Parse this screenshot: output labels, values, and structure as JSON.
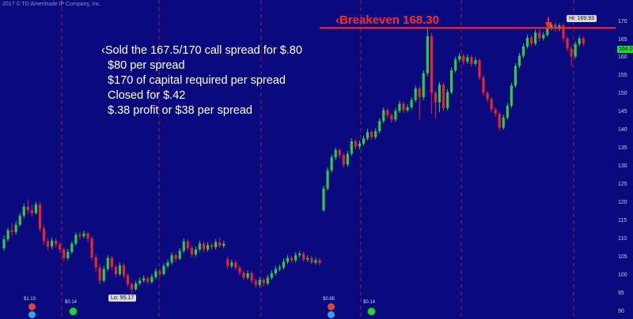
{
  "copyright": "2017 © TD Ameritrade IP Company, Inc.",
  "note": {
    "line1": "‹Sold the 167.5/170 call spread for $.80",
    "line2": "$80 per spread",
    "line3": "$170 of capital required per spread",
    "line4": "Closed for $.42",
    "line5": "$.38 profit or $38 per spread"
  },
  "breakeven_label": "‹Breakeven 168.30",
  "hi_label": "Hi: 169.93",
  "lo_label": "Lo: 95.17",
  "last_price_label": "164.0",
  "dividends": [
    "$1.13",
    "$0.14",
    "$0.85",
    "$0.14"
  ],
  "colors": {
    "background": "#0a0a7e",
    "up": "#2ecc40",
    "down": "#e8242e",
    "breakeven": "#ff2a2a",
    "separator": "#cc2a2a"
  },
  "chart_data": {
    "type": "candlestick",
    "title": "",
    "xlabel": "",
    "ylabel": "",
    "ylim": [
      88,
      176
    ],
    "yticks": [
      90,
      95,
      100,
      105,
      110,
      115,
      120,
      125,
      130,
      135,
      140,
      145,
      150,
      155,
      160,
      165,
      170
    ],
    "grid": false,
    "breakeven": 168.3,
    "high": 169.93,
    "low": 95.17,
    "last": 164.0,
    "candles": [
      {
        "o": 107.5,
        "c": 110.0,
        "h": 111.0,
        "l": 106.8
      },
      {
        "o": 110.0,
        "c": 112.5,
        "h": 113.2,
        "l": 109.3
      },
      {
        "o": 112.5,
        "c": 112.0,
        "h": 114.5,
        "l": 111.0
      },
      {
        "o": 112.0,
        "c": 114.0,
        "h": 115.0,
        "l": 111.2
      },
      {
        "o": 114.0,
        "c": 116.5,
        "h": 117.2,
        "l": 113.5
      },
      {
        "o": 116.5,
        "c": 119.0,
        "h": 119.8,
        "l": 115.8
      },
      {
        "o": 119.0,
        "c": 118.0,
        "h": 121.0,
        "l": 117.0
      },
      {
        "o": 118.0,
        "c": 117.2,
        "h": 119.5,
        "l": 116.2
      },
      {
        "o": 117.2,
        "c": 119.6,
        "h": 120.4,
        "l": 116.8
      },
      {
        "o": 119.6,
        "c": 113.0,
        "h": 120.2,
        "l": 112.2
      },
      {
        "o": 113.0,
        "c": 109.5,
        "h": 113.8,
        "l": 108.5
      },
      {
        "o": 109.5,
        "c": 108.0,
        "h": 110.2,
        "l": 107.0
      },
      {
        "o": 108.0,
        "c": 109.6,
        "h": 110.5,
        "l": 107.3
      },
      {
        "o": 109.6,
        "c": 108.6,
        "h": 110.3,
        "l": 107.8
      },
      {
        "o": 108.6,
        "c": 107.2,
        "h": 109.2,
        "l": 106.2
      },
      {
        "o": 107.2,
        "c": 104.8,
        "h": 107.8,
        "l": 104.0
      },
      {
        "o": 104.8,
        "c": 106.5,
        "h": 107.3,
        "l": 104.2
      },
      {
        "o": 106.5,
        "c": 108.8,
        "h": 109.5,
        "l": 106.0
      },
      {
        "o": 108.8,
        "c": 111.2,
        "h": 111.8,
        "l": 108.2
      },
      {
        "o": 111.2,
        "c": 110.8,
        "h": 112.2,
        "l": 110.0
      },
      {
        "o": 110.8,
        "c": 111.6,
        "h": 112.4,
        "l": 110.2
      },
      {
        "o": 111.6,
        "c": 110.2,
        "h": 112.0,
        "l": 109.2
      },
      {
        "o": 110.2,
        "c": 105.0,
        "h": 110.8,
        "l": 104.2
      },
      {
        "o": 105.0,
        "c": 102.2,
        "h": 105.8,
        "l": 101.0
      },
      {
        "o": 102.2,
        "c": 98.6,
        "h": 103.0,
        "l": 97.6
      },
      {
        "o": 98.6,
        "c": 101.8,
        "h": 102.6,
        "l": 98.0
      },
      {
        "o": 101.8,
        "c": 104.8,
        "h": 105.6,
        "l": 101.2
      },
      {
        "o": 104.8,
        "c": 102.4,
        "h": 105.4,
        "l": 101.6
      },
      {
        "o": 102.4,
        "c": 100.4,
        "h": 103.0,
        "l": 99.6
      },
      {
        "o": 100.4,
        "c": 102.8,
        "h": 103.6,
        "l": 99.8
      },
      {
        "o": 102.8,
        "c": 100.0,
        "h": 103.4,
        "l": 99.2
      },
      {
        "o": 100.0,
        "c": 97.6,
        "h": 100.6,
        "l": 96.8
      },
      {
        "o": 97.6,
        "c": 96.2,
        "h": 98.2,
        "l": 95.17
      },
      {
        "o": 96.2,
        "c": 97.8,
        "h": 98.6,
        "l": 95.8
      },
      {
        "o": 97.8,
        "c": 98.6,
        "h": 99.4,
        "l": 97.2
      },
      {
        "o": 98.6,
        "c": 99.2,
        "h": 100.0,
        "l": 98.0
      },
      {
        "o": 99.2,
        "c": 98.2,
        "h": 99.8,
        "l": 97.6
      },
      {
        "o": 98.2,
        "c": 99.6,
        "h": 100.4,
        "l": 97.8
      },
      {
        "o": 99.6,
        "c": 101.2,
        "h": 102.0,
        "l": 99.0
      },
      {
        "o": 101.2,
        "c": 100.4,
        "h": 101.8,
        "l": 99.6
      },
      {
        "o": 100.4,
        "c": 102.6,
        "h": 103.4,
        "l": 100.0
      },
      {
        "o": 102.6,
        "c": 103.6,
        "h": 104.4,
        "l": 102.0
      },
      {
        "o": 103.6,
        "c": 105.6,
        "h": 106.4,
        "l": 103.0
      },
      {
        "o": 105.6,
        "c": 104.6,
        "h": 106.2,
        "l": 103.8
      },
      {
        "o": 104.6,
        "c": 106.8,
        "h": 107.6,
        "l": 104.2
      },
      {
        "o": 106.8,
        "c": 109.4,
        "h": 110.2,
        "l": 106.2
      },
      {
        "o": 109.4,
        "c": 107.6,
        "h": 110.0,
        "l": 106.8
      },
      {
        "o": 107.6,
        "c": 105.8,
        "h": 108.2,
        "l": 105.0
      },
      {
        "o": 105.8,
        "c": 107.2,
        "h": 108.0,
        "l": 105.2
      },
      {
        "o": 107.2,
        "c": 108.8,
        "h": 109.6,
        "l": 106.6
      },
      {
        "o": 108.8,
        "c": 107.2,
        "h": 109.4,
        "l": 106.4
      },
      {
        "o": 107.2,
        "c": 108.4,
        "h": 109.2,
        "l": 106.6
      },
      {
        "o": 108.4,
        "c": 107.8,
        "h": 109.0,
        "l": 107.0
      },
      {
        "o": 107.8,
        "c": 109.2,
        "h": 110.0,
        "l": 107.2
      },
      {
        "o": 109.2,
        "c": 108.2,
        "h": 110.4,
        "l": 107.6
      },
      {
        "o": 108.2,
        "c": 108.8,
        "h": 109.6,
        "l": 107.6
      },
      {
        "o": 104.4,
        "c": 102.6,
        "h": 105.2,
        "l": 101.8
      },
      {
        "o": 102.6,
        "c": 103.6,
        "h": 104.4,
        "l": 102.0
      },
      {
        "o": 103.6,
        "c": 102.2,
        "h": 104.2,
        "l": 101.4
      },
      {
        "o": 102.2,
        "c": 100.8,
        "h": 102.8,
        "l": 100.0
      },
      {
        "o": 100.8,
        "c": 99.4,
        "h": 101.4,
        "l": 98.6
      },
      {
        "o": 99.4,
        "c": 100.6,
        "h": 101.4,
        "l": 98.8
      },
      {
        "o": 100.6,
        "c": 98.6,
        "h": 101.2,
        "l": 97.8
      },
      {
        "o": 98.6,
        "c": 97.4,
        "h": 99.2,
        "l": 96.6
      },
      {
        "o": 97.4,
        "c": 98.8,
        "h": 99.6,
        "l": 96.8
      },
      {
        "o": 98.8,
        "c": 97.8,
        "h": 99.4,
        "l": 97.0
      },
      {
        "o": 97.8,
        "c": 99.4,
        "h": 100.2,
        "l": 97.2
      },
      {
        "o": 99.4,
        "c": 100.6,
        "h": 101.4,
        "l": 98.8
      },
      {
        "o": 100.6,
        "c": 101.8,
        "h": 102.6,
        "l": 100.0
      },
      {
        "o": 101.8,
        "c": 102.2,
        "h": 103.0,
        "l": 101.2
      },
      {
        "o": 102.2,
        "c": 103.8,
        "h": 104.6,
        "l": 101.6
      },
      {
        "o": 103.8,
        "c": 104.8,
        "h": 105.6,
        "l": 103.2
      },
      {
        "o": 104.8,
        "c": 104.2,
        "h": 105.4,
        "l": 103.6
      },
      {
        "o": 104.2,
        "c": 105.6,
        "h": 106.4,
        "l": 103.6
      },
      {
        "o": 105.6,
        "c": 106.0,
        "h": 106.8,
        "l": 105.0
      },
      {
        "o": 106.0,
        "c": 104.4,
        "h": 106.6,
        "l": 103.8
      },
      {
        "o": 104.4,
        "c": 104.8,
        "h": 105.6,
        "l": 103.8
      },
      {
        "o": 104.8,
        "c": 103.6,
        "h": 105.4,
        "l": 103.0
      },
      {
        "o": 103.6,
        "c": 104.2,
        "h": 105.0,
        "l": 103.0
      },
      {
        "o": 104.2,
        "c": 103.4,
        "h": 104.8,
        "l": 102.8
      },
      {
        "o": 118.0,
        "c": 124.0,
        "h": 124.8,
        "l": 117.6
      },
      {
        "o": 124.0,
        "c": 129.0,
        "h": 129.8,
        "l": 123.4
      },
      {
        "o": 129.0,
        "c": 132.6,
        "h": 133.4,
        "l": 128.4
      },
      {
        "o": 132.6,
        "c": 134.6,
        "h": 135.4,
        "l": 131.8
      },
      {
        "o": 134.6,
        "c": 133.2,
        "h": 135.2,
        "l": 132.4
      },
      {
        "o": 133.2,
        "c": 130.6,
        "h": 133.8,
        "l": 129.8
      },
      {
        "o": 130.6,
        "c": 133.6,
        "h": 134.4,
        "l": 130.0
      },
      {
        "o": 133.6,
        "c": 137.0,
        "h": 137.8,
        "l": 133.0
      },
      {
        "o": 137.0,
        "c": 135.6,
        "h": 137.6,
        "l": 134.8
      },
      {
        "o": 135.6,
        "c": 136.4,
        "h": 137.2,
        "l": 134.8
      },
      {
        "o": 136.4,
        "c": 137.8,
        "h": 138.6,
        "l": 135.8
      },
      {
        "o": 137.8,
        "c": 139.6,
        "h": 140.4,
        "l": 137.2
      },
      {
        "o": 139.6,
        "c": 138.2,
        "h": 140.2,
        "l": 137.4
      },
      {
        "o": 138.2,
        "c": 139.8,
        "h": 140.6,
        "l": 137.6
      },
      {
        "o": 139.8,
        "c": 142.6,
        "h": 143.4,
        "l": 139.2
      },
      {
        "o": 142.6,
        "c": 145.6,
        "h": 146.4,
        "l": 142.0
      },
      {
        "o": 145.6,
        "c": 144.2,
        "h": 146.2,
        "l": 143.4
      },
      {
        "o": 144.2,
        "c": 143.0,
        "h": 144.8,
        "l": 142.2
      },
      {
        "o": 143.0,
        "c": 145.4,
        "h": 146.2,
        "l": 142.4
      },
      {
        "o": 145.4,
        "c": 147.4,
        "h": 148.2,
        "l": 144.8
      },
      {
        "o": 147.4,
        "c": 145.6,
        "h": 148.0,
        "l": 144.8
      },
      {
        "o": 145.6,
        "c": 146.4,
        "h": 147.2,
        "l": 145.0
      },
      {
        "o": 146.4,
        "c": 148.4,
        "h": 149.2,
        "l": 145.8
      },
      {
        "o": 148.4,
        "c": 151.6,
        "h": 152.4,
        "l": 147.8
      },
      {
        "o": 151.6,
        "c": 149.2,
        "h": 152.2,
        "l": 143.0
      },
      {
        "o": 149.2,
        "c": 155.8,
        "h": 156.6,
        "l": 148.4
      },
      {
        "o": 155.8,
        "c": 166.0,
        "h": 168.3,
        "l": 155.0
      },
      {
        "o": 166.0,
        "c": 150.4,
        "h": 167.0,
        "l": 144.6
      },
      {
        "o": 150.4,
        "c": 147.8,
        "h": 151.0,
        "l": 143.2
      },
      {
        "o": 147.8,
        "c": 152.6,
        "h": 153.4,
        "l": 145.0
      },
      {
        "o": 152.6,
        "c": 146.2,
        "h": 153.2,
        "l": 145.4
      },
      {
        "o": 146.2,
        "c": 150.6,
        "h": 151.4,
        "l": 145.6
      },
      {
        "o": 150.6,
        "c": 156.6,
        "h": 157.4,
        "l": 150.0
      },
      {
        "o": 156.6,
        "c": 159.6,
        "h": 160.4,
        "l": 156.0
      },
      {
        "o": 159.6,
        "c": 160.6,
        "h": 161.4,
        "l": 158.8
      },
      {
        "o": 160.6,
        "c": 159.0,
        "h": 161.2,
        "l": 158.2
      },
      {
        "o": 159.0,
        "c": 160.2,
        "h": 161.0,
        "l": 158.4
      },
      {
        "o": 160.2,
        "c": 158.4,
        "h": 160.8,
        "l": 157.6
      },
      {
        "o": 158.4,
        "c": 159.4,
        "h": 160.2,
        "l": 157.8
      },
      {
        "o": 159.4,
        "c": 154.6,
        "h": 160.0,
        "l": 153.8
      },
      {
        "o": 154.6,
        "c": 150.4,
        "h": 155.2,
        "l": 149.6
      },
      {
        "o": 150.4,
        "c": 148.6,
        "h": 151.0,
        "l": 147.8
      },
      {
        "o": 148.6,
        "c": 145.8,
        "h": 149.2,
        "l": 145.0
      },
      {
        "o": 145.8,
        "c": 144.6,
        "h": 146.4,
        "l": 143.8
      },
      {
        "o": 144.6,
        "c": 140.8,
        "h": 145.2,
        "l": 140.0
      },
      {
        "o": 140.8,
        "c": 143.6,
        "h": 144.4,
        "l": 140.2
      },
      {
        "o": 143.6,
        "c": 146.8,
        "h": 147.6,
        "l": 143.0
      },
      {
        "o": 146.8,
        "c": 152.4,
        "h": 153.2,
        "l": 146.2
      },
      {
        "o": 152.4,
        "c": 157.8,
        "h": 158.6,
        "l": 151.8
      },
      {
        "o": 157.8,
        "c": 160.6,
        "h": 161.4,
        "l": 157.2
      },
      {
        "o": 160.6,
        "c": 163.2,
        "h": 164.0,
        "l": 160.0
      },
      {
        "o": 163.2,
        "c": 165.6,
        "h": 166.4,
        "l": 162.6
      },
      {
        "o": 165.6,
        "c": 164.0,
        "h": 166.2,
        "l": 163.2
      },
      {
        "o": 164.0,
        "c": 167.0,
        "h": 167.8,
        "l": 163.4
      },
      {
        "o": 167.0,
        "c": 165.4,
        "h": 167.6,
        "l": 164.6
      },
      {
        "o": 165.4,
        "c": 166.4,
        "h": 167.2,
        "l": 164.8
      },
      {
        "o": 166.4,
        "c": 168.2,
        "h": 169.0,
        "l": 165.8
      },
      {
        "o": 168.2,
        "c": 169.2,
        "h": 169.93,
        "l": 167.6
      },
      {
        "o": 169.2,
        "c": 168.0,
        "h": 169.8,
        "l": 167.2
      },
      {
        "o": 168.0,
        "c": 169.0,
        "h": 169.6,
        "l": 167.4
      },
      {
        "o": 169.0,
        "c": 165.4,
        "h": 169.6,
        "l": 164.6
      },
      {
        "o": 165.4,
        "c": 162.6,
        "h": 166.0,
        "l": 161.8
      },
      {
        "o": 162.6,
        "c": 160.4,
        "h": 163.2,
        "l": 157.6
      },
      {
        "o": 160.4,
        "c": 163.8,
        "h": 164.6,
        "l": 159.8
      },
      {
        "o": 163.8,
        "c": 165.4,
        "h": 166.2,
        "l": 163.2
      },
      {
        "o": 165.4,
        "c": 164.0,
        "h": 166.0,
        "l": 163.2
      }
    ]
  }
}
